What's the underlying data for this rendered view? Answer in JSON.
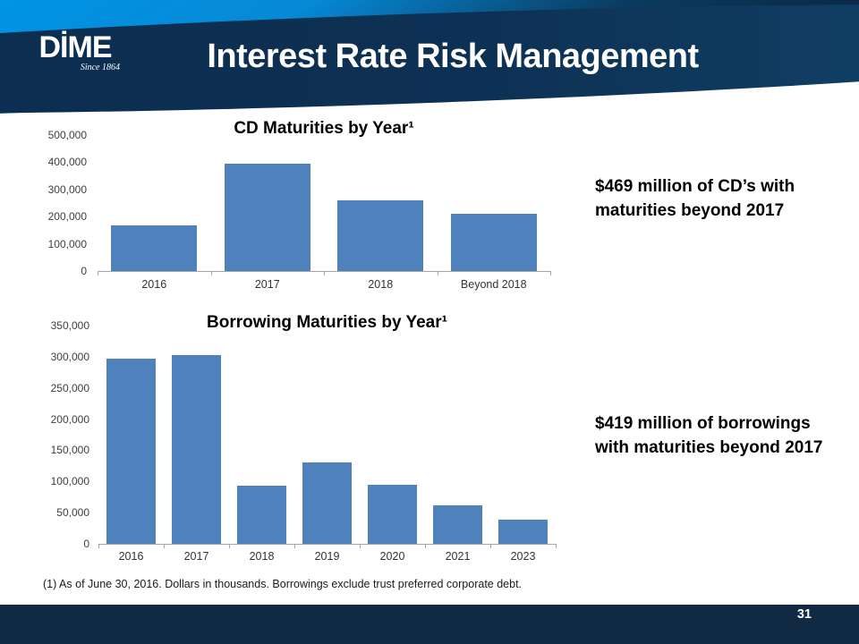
{
  "header": {
    "logo_text": "DİME",
    "logo_tagline": "Since 1864",
    "title": "Interest Rate Risk Management"
  },
  "chart_data": [
    {
      "type": "bar",
      "title": "CD Maturities by Year¹",
      "categories": [
        "2016",
        "2017",
        "2018",
        "Beyond 2018"
      ],
      "values": [
        169000,
        396000,
        260000,
        209000
      ],
      "ylim": [
        0,
        500000
      ],
      "ytick_step": 100000,
      "bar_color": "#4f81bd",
      "grid": false,
      "legend": false
    },
    {
      "type": "bar",
      "title": "Borrowing Maturities by Year¹",
      "categories": [
        "2016",
        "2017",
        "2018",
        "2019",
        "2020",
        "2021",
        "2023"
      ],
      "values": [
        297000,
        303000,
        93000,
        131000,
        94000,
        62000,
        39000
      ],
      "ylim": [
        0,
        350000
      ],
      "ytick_step": 50000,
      "bar_color": "#4f81bd",
      "grid": false,
      "legend": false
    }
  ],
  "callouts": {
    "cd": "$469 million of CD’s with maturities beyond 2017",
    "borrowings": "$419 million of borrowings with maturities beyond 2017"
  },
  "footnote": "(1) As of June 30, 2016. Dollars in thousands. Borrowings exclude trust preferred corporate debt.",
  "footer": {
    "page_number": "31"
  },
  "colors": {
    "bar_blue": "#4f81bd",
    "header_bright_blue": "#0094e4",
    "header_navy": "#0c2b4c",
    "footer_navy": "#0f2a42"
  }
}
